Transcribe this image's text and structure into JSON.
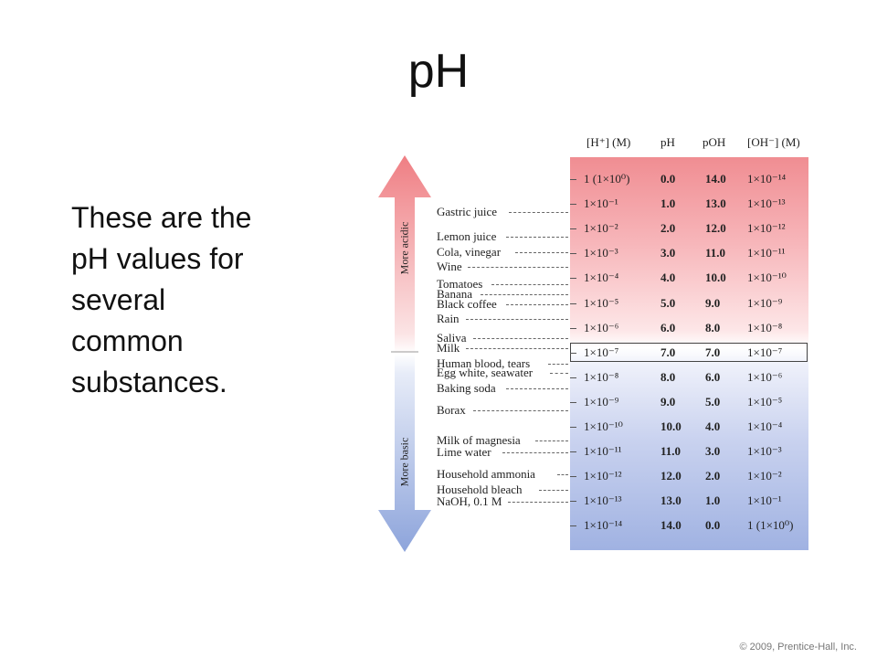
{
  "slide": {
    "title": "pH",
    "body": "These are the pH values for several common substances.",
    "copyright": "© 2009, Prentice-Hall, Inc."
  },
  "figure": {
    "arrow_labels": {
      "acidic": "More acidic",
      "basic": "More basic"
    },
    "columns": {
      "h_conc": "[H⁺] (M)",
      "ph": "pH",
      "poh": "pOH",
      "oh_conc": "[OH⁻] (M)"
    },
    "rows": [
      {
        "h": "1 (1×10⁰)",
        "ph": "0.0",
        "poh": "14.0",
        "oh": "1×10⁻¹⁴"
      },
      {
        "h": "1×10⁻¹",
        "ph": "1.0",
        "poh": "13.0",
        "oh": "1×10⁻¹³"
      },
      {
        "h": "1×10⁻²",
        "ph": "2.0",
        "poh": "12.0",
        "oh": "1×10⁻¹²"
      },
      {
        "h": "1×10⁻³",
        "ph": "3.0",
        "poh": "11.0",
        "oh": "1×10⁻¹¹"
      },
      {
        "h": "1×10⁻⁴",
        "ph": "4.0",
        "poh": "10.0",
        "oh": "1×10⁻¹⁰"
      },
      {
        "h": "1×10⁻⁵",
        "ph": "5.0",
        "poh": "9.0",
        "oh": "1×10⁻⁹"
      },
      {
        "h": "1×10⁻⁶",
        "ph": "6.0",
        "poh": "8.0",
        "oh": "1×10⁻⁸"
      },
      {
        "h": "1×10⁻⁷",
        "ph": "7.0",
        "poh": "7.0",
        "oh": "1×10⁻⁷"
      },
      {
        "h": "1×10⁻⁸",
        "ph": "8.0",
        "poh": "6.0",
        "oh": "1×10⁻⁶"
      },
      {
        "h": "1×10⁻⁹",
        "ph": "9.0",
        "poh": "5.0",
        "oh": "1×10⁻⁵"
      },
      {
        "h": "1×10⁻¹⁰",
        "ph": "10.0",
        "poh": "4.0",
        "oh": "1×10⁻⁴"
      },
      {
        "h": "1×10⁻¹¹",
        "ph": "11.0",
        "poh": "3.0",
        "oh": "1×10⁻³"
      },
      {
        "h": "1×10⁻¹²",
        "ph": "12.0",
        "poh": "2.0",
        "oh": "1×10⁻²"
      },
      {
        "h": "1×10⁻¹³",
        "ph": "13.0",
        "poh": "1.0",
        "oh": "1×10⁻¹"
      },
      {
        "h": "1×10⁻¹⁴",
        "ph": "14.0",
        "poh": "0.0",
        "oh": "1 (1×10⁰)"
      }
    ],
    "highlighted_ph": "7.0",
    "substances": [
      {
        "name": "Gastric juice",
        "ph": 1.3
      },
      {
        "name": "Lemon juice",
        "ph": 2.3
      },
      {
        "name": "Cola, vinegar",
        "ph": 2.9
      },
      {
        "name": "Wine",
        "ph": 3.5
      },
      {
        "name": "Tomatoes",
        "ph": 4.2
      },
      {
        "name": "Banana",
        "ph": 4.6
      },
      {
        "name": "Black coffee",
        "ph": 5.0
      },
      {
        "name": "Rain",
        "ph": 5.6
      },
      {
        "name": "Saliva",
        "ph": 6.4
      },
      {
        "name": "Milk",
        "ph": 6.8
      },
      {
        "name": "Human blood, tears",
        "ph": 7.4
      },
      {
        "name": "Egg white, seawater",
        "ph": 7.8
      },
      {
        "name": "Baking soda",
        "ph": 8.4
      },
      {
        "name": "Borax",
        "ph": 9.3
      },
      {
        "name": "Milk of magnesia",
        "ph": 10.5
      },
      {
        "name": "Lime water",
        "ph": 11.0
      },
      {
        "name": "Household ammonia",
        "ph": 11.9
      },
      {
        "name": "Household bleach",
        "ph": 12.5
      },
      {
        "name": "NaOH, 0.1 M",
        "ph": 13.0
      }
    ]
  }
}
